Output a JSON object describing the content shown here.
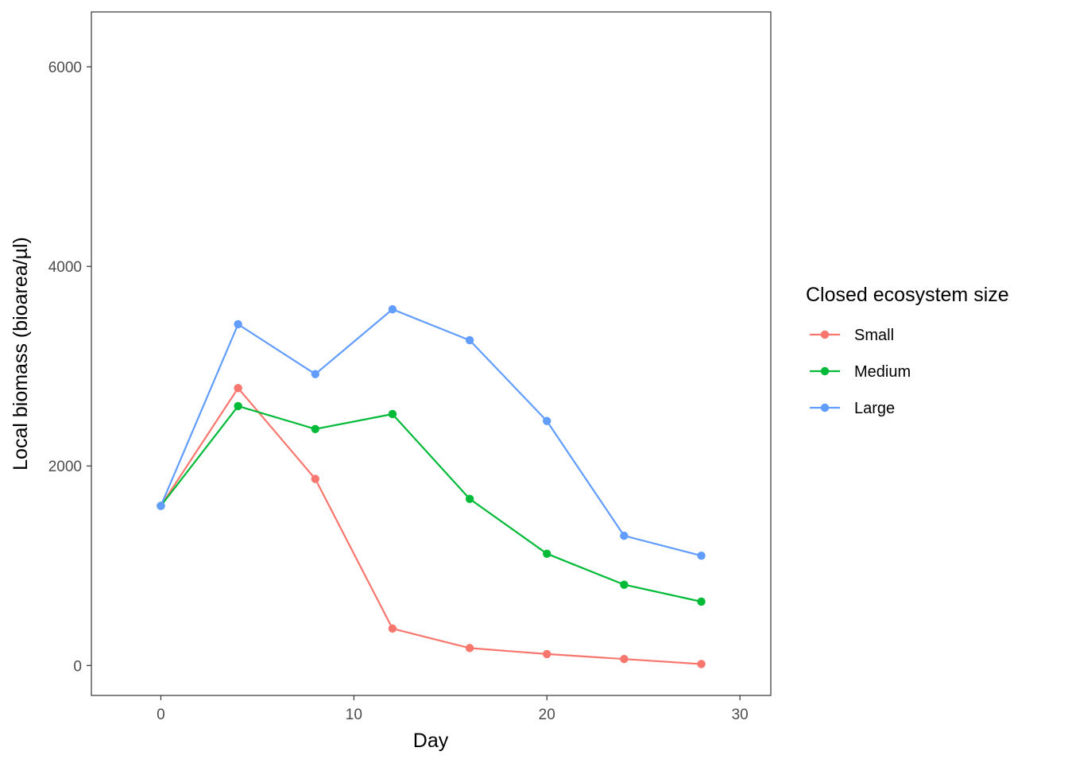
{
  "chart_data": {
    "type": "line",
    "xlabel": "Day",
    "ylabel": "Local biomass (bioarea/µl)",
    "xlim": [
      -3.6,
      31.6
    ],
    "ylim": [
      -300,
      6550
    ],
    "xticks": [
      0,
      10,
      20,
      30
    ],
    "yticks": [
      0,
      2000,
      4000,
      6000
    ],
    "grid": false,
    "legend": {
      "title": "Closed ecosystem size",
      "placement": "right"
    },
    "x": [
      0,
      4,
      8,
      12,
      16,
      20,
      24,
      28
    ],
    "series": [
      {
        "name": "Small",
        "color": "#F8766D",
        "values": [
          1600,
          2780,
          1870,
          370,
          175,
          115,
          65,
          15
        ]
      },
      {
        "name": "Medium",
        "color": "#00BA38",
        "values": [
          1600,
          2600,
          2370,
          2520,
          1670,
          1120,
          810,
          640
        ]
      },
      {
        "name": "Large",
        "color": "#619CFF",
        "values": [
          1600,
          3420,
          2920,
          3570,
          3260,
          2450,
          1300,
          1100
        ]
      }
    ]
  }
}
